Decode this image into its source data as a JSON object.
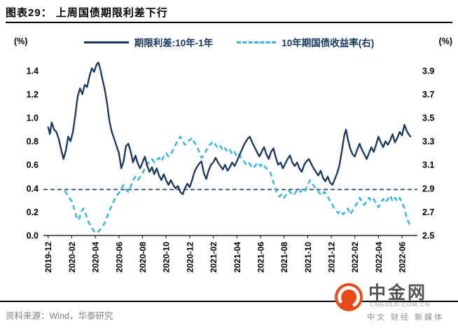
{
  "header": {
    "title": "图表29：  上周国债期限利差下行"
  },
  "legend": [
    {
      "label": "期限利差:10年-1年",
      "color": "#17375e",
      "style": "solid"
    },
    {
      "label": "10年期国债收益率(右)",
      "color": "#2fb3e8",
      "style": "dashed"
    }
  ],
  "footer": {
    "source": "资料来源：Wind，华泰研究"
  },
  "logo": {
    "name": "中金网",
    "domain": "CNGOLD.COM.CN",
    "tagline": "中文 财经 新媒体",
    "brand_color": "#e84a18"
  },
  "chart_data": {
    "type": "line",
    "title": "上周国债期限利差下行",
    "grid": false,
    "legend_position": "top-center",
    "x_ticks": [
      "2019-12",
      "2020-02",
      "2020-04",
      "2020-06",
      "2020-08",
      "2020-10",
      "2020-12",
      "2021-02",
      "2021-04",
      "2021-06",
      "2021-08",
      "2021-10",
      "2021-12",
      "2022-02",
      "2022-04",
      "2022-06"
    ],
    "x_tick_step_months": 2,
    "left_axis": {
      "label": "(%)",
      "min": 0.0,
      "max": 1.5,
      "ticks": [
        0.0,
        0.2,
        0.4,
        0.6,
        0.8,
        1.0,
        1.2,
        1.4
      ]
    },
    "right_axis": {
      "label": "(%)",
      "min": 2.5,
      "max": 4.0,
      "ticks": [
        2.5,
        2.7,
        2.9,
        3.1,
        3.3,
        3.5,
        3.7,
        3.9
      ]
    },
    "reference_line": {
      "axis": "left",
      "value": 0.39,
      "color": "#1b3d6e",
      "style": "dashed"
    },
    "series": [
      {
        "name": "10年期国债收益率(右)",
        "axis": "right",
        "color": "#2fb3e8",
        "style": "dashed",
        "width": 2.4,
        "points": [
          [
            1.4,
            2.88
          ],
          [
            1.6,
            2.85
          ],
          [
            1.8,
            2.82
          ],
          [
            2.0,
            2.79
          ],
          [
            2.2,
            2.73
          ],
          [
            2.4,
            2.66
          ],
          [
            2.6,
            2.63
          ],
          [
            2.8,
            2.7
          ],
          [
            3.0,
            2.73
          ],
          [
            3.2,
            2.68
          ],
          [
            3.4,
            2.62
          ],
          [
            3.6,
            2.58
          ],
          [
            3.8,
            2.55
          ],
          [
            4.0,
            2.52
          ],
          [
            4.2,
            2.53
          ],
          [
            4.4,
            2.55
          ],
          [
            4.6,
            2.57
          ],
          [
            4.8,
            2.61
          ],
          [
            5.0,
            2.66
          ],
          [
            5.2,
            2.71
          ],
          [
            5.4,
            2.76
          ],
          [
            5.6,
            2.8
          ],
          [
            5.8,
            2.84
          ],
          [
            6.0,
            2.86
          ],
          [
            6.2,
            2.9
          ],
          [
            6.4,
            2.93
          ],
          [
            6.6,
            2.89
          ],
          [
            6.8,
            2.87
          ],
          [
            7.0,
            2.92
          ],
          [
            7.2,
            2.97
          ],
          [
            7.4,
            3.0
          ],
          [
            7.6,
            2.97
          ],
          [
            7.8,
            3.0
          ],
          [
            8.0,
            3.03
          ],
          [
            8.2,
            3.07
          ],
          [
            8.4,
            3.1
          ],
          [
            8.6,
            3.13
          ],
          [
            8.8,
            3.15
          ],
          [
            9.0,
            3.12
          ],
          [
            9.2,
            3.14
          ],
          [
            9.4,
            3.16
          ],
          [
            9.6,
            3.13
          ],
          [
            9.8,
            3.17
          ],
          [
            10.0,
            3.2
          ],
          [
            10.2,
            3.17
          ],
          [
            10.4,
            3.19
          ],
          [
            10.6,
            3.23
          ],
          [
            10.8,
            3.27
          ],
          [
            11.0,
            3.31
          ],
          [
            11.2,
            3.34
          ],
          [
            11.4,
            3.3
          ],
          [
            11.6,
            3.27
          ],
          [
            11.8,
            3.3
          ],
          [
            12.0,
            3.31
          ],
          [
            12.2,
            3.33
          ],
          [
            12.4,
            3.29
          ],
          [
            12.6,
            3.26
          ],
          [
            12.8,
            3.21
          ],
          [
            13.0,
            3.16
          ],
          [
            13.2,
            3.18
          ],
          [
            13.4,
            3.22
          ],
          [
            13.6,
            3.26
          ],
          [
            13.8,
            3.28
          ],
          [
            14.0,
            3.3
          ],
          [
            14.2,
            3.27
          ],
          [
            14.4,
            3.24
          ],
          [
            14.6,
            3.26
          ],
          [
            14.8,
            3.22
          ],
          [
            15.0,
            3.24
          ],
          [
            15.2,
            3.21
          ],
          [
            15.4,
            3.23
          ],
          [
            15.6,
            3.19
          ],
          [
            15.8,
            3.21
          ],
          [
            16.0,
            3.17
          ],
          [
            16.2,
            3.19
          ],
          [
            16.4,
            3.15
          ],
          [
            16.6,
            3.13
          ],
          [
            16.8,
            3.1
          ],
          [
            17.0,
            3.12
          ],
          [
            17.2,
            3.09
          ],
          [
            17.4,
            3.07
          ],
          [
            17.6,
            3.1
          ],
          [
            17.8,
            3.12
          ],
          [
            18.0,
            3.09
          ],
          [
            18.2,
            3.11
          ],
          [
            18.4,
            3.08
          ],
          [
            18.6,
            3.06
          ],
          [
            18.8,
            3.04
          ],
          [
            19.0,
            2.99
          ],
          [
            19.2,
            2.91
          ],
          [
            19.4,
            2.86
          ],
          [
            19.6,
            2.83
          ],
          [
            19.8,
            2.85
          ],
          [
            20.0,
            2.82
          ],
          [
            20.2,
            2.85
          ],
          [
            20.4,
            2.88
          ],
          [
            20.6,
            2.86
          ],
          [
            20.8,
            2.84
          ],
          [
            21.0,
            2.87
          ],
          [
            21.2,
            2.89
          ],
          [
            21.4,
            2.87
          ],
          [
            21.6,
            2.9
          ],
          [
            21.8,
            2.88
          ],
          [
            22.0,
            2.93
          ],
          [
            22.2,
            2.97
          ],
          [
            22.4,
            2.94
          ],
          [
            22.6,
            2.91
          ],
          [
            22.8,
            2.89
          ],
          [
            23.0,
            2.86
          ],
          [
            23.2,
            2.84
          ],
          [
            23.4,
            2.87
          ],
          [
            23.6,
            2.85
          ],
          [
            23.8,
            2.81
          ],
          [
            24.0,
            2.78
          ],
          [
            24.2,
            2.74
          ],
          [
            24.4,
            2.71
          ],
          [
            24.6,
            2.69
          ],
          [
            24.8,
            2.71
          ],
          [
            25.0,
            2.68
          ],
          [
            25.2,
            2.7
          ],
          [
            25.4,
            2.73
          ],
          [
            25.6,
            2.68
          ],
          [
            25.8,
            2.71
          ],
          [
            26.0,
            2.74
          ],
          [
            26.2,
            2.78
          ],
          [
            26.4,
            2.82
          ],
          [
            26.6,
            2.79
          ],
          [
            26.8,
            2.76
          ],
          [
            27.0,
            2.79
          ],
          [
            27.2,
            2.82
          ],
          [
            27.4,
            2.79
          ],
          [
            27.6,
            2.81
          ],
          [
            27.8,
            2.77
          ],
          [
            28.0,
            2.74
          ],
          [
            28.2,
            2.78
          ],
          [
            28.4,
            2.81
          ],
          [
            28.6,
            2.78
          ],
          [
            28.8,
            2.81
          ],
          [
            29.0,
            2.84
          ],
          [
            29.2,
            2.79
          ],
          [
            29.4,
            2.82
          ],
          [
            29.6,
            2.79
          ],
          [
            29.8,
            2.82
          ],
          [
            30.0,
            2.78
          ],
          [
            30.2,
            2.73
          ],
          [
            30.4,
            2.65
          ],
          [
            30.6,
            2.6
          ],
          [
            30.75,
            2.57
          ]
        ]
      },
      {
        "name": "期限利差:10年-1年",
        "axis": "left",
        "color": "#17375e",
        "style": "solid",
        "width": 2.3,
        "points": [
          [
            0,
            0.92
          ],
          [
            0.15,
            0.86
          ],
          [
            0.3,
            0.96
          ],
          [
            0.5,
            0.9
          ],
          [
            0.7,
            0.88
          ],
          [
            0.9,
            0.82
          ],
          [
            1.1,
            0.73
          ],
          [
            1.3,
            0.65
          ],
          [
            1.5,
            0.72
          ],
          [
            1.7,
            0.84
          ],
          [
            1.9,
            0.8
          ],
          [
            2.1,
            0.88
          ],
          [
            2.3,
            1.02
          ],
          [
            2.5,
            1.18
          ],
          [
            2.7,
            1.25
          ],
          [
            2.9,
            1.2
          ],
          [
            3.1,
            1.28
          ],
          [
            3.3,
            1.26
          ],
          [
            3.5,
            1.35
          ],
          [
            3.7,
            1.42
          ],
          [
            3.9,
            1.39
          ],
          [
            4.1,
            1.45
          ],
          [
            4.25,
            1.47
          ],
          [
            4.4,
            1.42
          ],
          [
            4.6,
            1.33
          ],
          [
            4.8,
            1.24
          ],
          [
            5.0,
            1.12
          ],
          [
            5.2,
            0.97
          ],
          [
            5.4,
            0.88
          ],
          [
            5.6,
            0.82
          ],
          [
            5.8,
            0.76
          ],
          [
            6.0,
            0.7
          ],
          [
            6.2,
            0.57
          ],
          [
            6.4,
            0.63
          ],
          [
            6.6,
            0.76
          ],
          [
            6.8,
            0.78
          ],
          [
            7.0,
            0.71
          ],
          [
            7.2,
            0.62
          ],
          [
            7.4,
            0.68
          ],
          [
            7.6,
            0.61
          ],
          [
            7.8,
            0.57
          ],
          [
            8.0,
            0.62
          ],
          [
            8.2,
            0.67
          ],
          [
            8.4,
            0.59
          ],
          [
            8.6,
            0.54
          ],
          [
            8.8,
            0.58
          ],
          [
            9.0,
            0.52
          ],
          [
            9.2,
            0.57
          ],
          [
            9.4,
            0.51
          ],
          [
            9.6,
            0.47
          ],
          [
            9.8,
            0.52
          ],
          [
            10.0,
            0.47
          ],
          [
            10.2,
            0.43
          ],
          [
            10.4,
            0.47
          ],
          [
            10.6,
            0.43
          ],
          [
            10.8,
            0.4
          ],
          [
            11.0,
            0.42
          ],
          [
            11.2,
            0.37
          ],
          [
            11.4,
            0.35
          ],
          [
            11.6,
            0.4
          ],
          [
            11.8,
            0.44
          ],
          [
            12.0,
            0.41
          ],
          [
            12.2,
            0.47
          ],
          [
            12.4,
            0.54
          ],
          [
            12.6,
            0.58
          ],
          [
            12.8,
            0.61
          ],
          [
            13.0,
            0.63
          ],
          [
            13.2,
            0.53
          ],
          [
            13.4,
            0.48
          ],
          [
            13.6,
            0.55
          ],
          [
            13.8,
            0.6
          ],
          [
            14.0,
            0.62
          ],
          [
            14.2,
            0.66
          ],
          [
            14.4,
            0.62
          ],
          [
            14.6,
            0.59
          ],
          [
            14.8,
            0.56
          ],
          [
            15.0,
            0.6
          ],
          [
            15.2,
            0.55
          ],
          [
            15.4,
            0.58
          ],
          [
            15.6,
            0.62
          ],
          [
            15.8,
            0.59
          ],
          [
            16.0,
            0.63
          ],
          [
            16.3,
            0.7
          ],
          [
            16.6,
            0.77
          ],
          [
            16.9,
            0.82
          ],
          [
            17.1,
            0.84
          ],
          [
            17.3,
            0.79
          ],
          [
            17.5,
            0.75
          ],
          [
            17.7,
            0.71
          ],
          [
            17.9,
            0.67
          ],
          [
            18.1,
            0.71
          ],
          [
            18.3,
            0.75
          ],
          [
            18.5,
            0.69
          ],
          [
            18.7,
            0.65
          ],
          [
            18.9,
            0.71
          ],
          [
            19.1,
            0.74
          ],
          [
            19.3,
            0.66
          ],
          [
            19.5,
            0.6
          ],
          [
            19.7,
            0.62
          ],
          [
            19.9,
            0.57
          ],
          [
            20.1,
            0.61
          ],
          [
            20.3,
            0.65
          ],
          [
            20.5,
            0.68
          ],
          [
            20.7,
            0.62
          ],
          [
            20.9,
            0.59
          ],
          [
            21.1,
            0.62
          ],
          [
            21.3,
            0.57
          ],
          [
            21.5,
            0.54
          ],
          [
            21.7,
            0.6
          ],
          [
            21.9,
            0.63
          ],
          [
            22.1,
            0.65
          ],
          [
            22.3,
            0.61
          ],
          [
            22.5,
            0.57
          ],
          [
            22.7,
            0.54
          ],
          [
            22.9,
            0.51
          ],
          [
            23.1,
            0.55
          ],
          [
            23.3,
            0.49
          ],
          [
            23.5,
            0.46
          ],
          [
            23.7,
            0.5
          ],
          [
            23.9,
            0.45
          ],
          [
            24.1,
            0.43
          ],
          [
            24.3,
            0.48
          ],
          [
            24.5,
            0.53
          ],
          [
            24.7,
            0.6
          ],
          [
            24.9,
            0.72
          ],
          [
            25.1,
            0.85
          ],
          [
            25.25,
            0.9
          ],
          [
            25.4,
            0.82
          ],
          [
            25.6,
            0.74
          ],
          [
            25.8,
            0.69
          ],
          [
            26.0,
            0.67
          ],
          [
            26.2,
            0.73
          ],
          [
            26.4,
            0.78
          ],
          [
            26.6,
            0.73
          ],
          [
            26.8,
            0.69
          ],
          [
            27.0,
            0.65
          ],
          [
            27.2,
            0.7
          ],
          [
            27.4,
            0.75
          ],
          [
            27.6,
            0.71
          ],
          [
            27.8,
            0.77
          ],
          [
            28.0,
            0.84
          ],
          [
            28.2,
            0.79
          ],
          [
            28.4,
            0.75
          ],
          [
            28.6,
            0.8
          ],
          [
            28.8,
            0.77
          ],
          [
            29.0,
            0.81
          ],
          [
            29.2,
            0.86
          ],
          [
            29.4,
            0.79
          ],
          [
            29.6,
            0.83
          ],
          [
            29.8,
            0.88
          ],
          [
            30.0,
            0.85
          ],
          [
            30.2,
            0.94
          ],
          [
            30.35,
            0.9
          ],
          [
            30.5,
            0.87
          ],
          [
            30.7,
            0.84
          ]
        ]
      }
    ]
  }
}
